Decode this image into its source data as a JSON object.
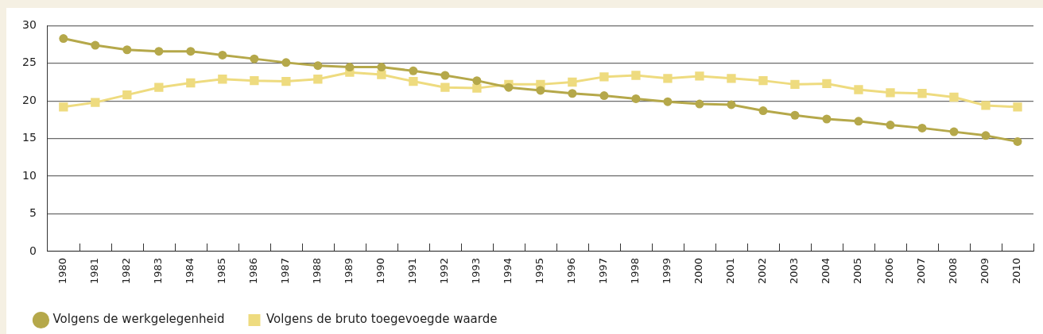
{
  "chart_data": {
    "type": "line",
    "categories": [
      "1980",
      "1981",
      "1982",
      "1983",
      "1984",
      "1985",
      "1986",
      "1987",
      "1988",
      "1989",
      "1990",
      "1991",
      "1992",
      "1993",
      "1994",
      "1995",
      "1996",
      "1997",
      "1998",
      "1999",
      "2000",
      "2001",
      "2002",
      "2003",
      "2004",
      "2005",
      "2006",
      "2007",
      "2008",
      "2009",
      "2010"
    ],
    "series": [
      {
        "name": "Volgens de werkgelegenheid",
        "color": "#b5a84a",
        "marker": "circle",
        "values": [
          28.3,
          27.4,
          26.8,
          26.6,
          26.6,
          26.1,
          25.6,
          25.1,
          24.7,
          24.5,
          24.5,
          24.0,
          23.4,
          22.7,
          21.8,
          21.4,
          21.0,
          20.7,
          20.3,
          19.9,
          19.6,
          19.5,
          18.7,
          18.1,
          17.6,
          17.3,
          16.8,
          16.4,
          15.9,
          15.4,
          14.6
        ]
      },
      {
        "name": "Volgens de bruto toegevoegde waarde",
        "color": "#eedb7f",
        "marker": "square",
        "values": [
          19.2,
          19.8,
          20.8,
          21.8,
          22.4,
          22.9,
          22.7,
          22.6,
          22.9,
          23.8,
          23.5,
          22.6,
          21.8,
          21.7,
          22.2,
          22.2,
          22.5,
          23.2,
          23.4,
          23.0,
          23.3,
          23.0,
          22.7,
          22.2,
          22.3,
          21.5,
          21.1,
          21.0,
          20.5,
          19.4,
          19.2
        ]
      }
    ],
    "ylim": [
      0,
      30
    ],
    "yticks": [
      0,
      5,
      10,
      15,
      20,
      25,
      30
    ],
    "grid": "y",
    "legend": "bottom left",
    "line_style": "solid"
  }
}
